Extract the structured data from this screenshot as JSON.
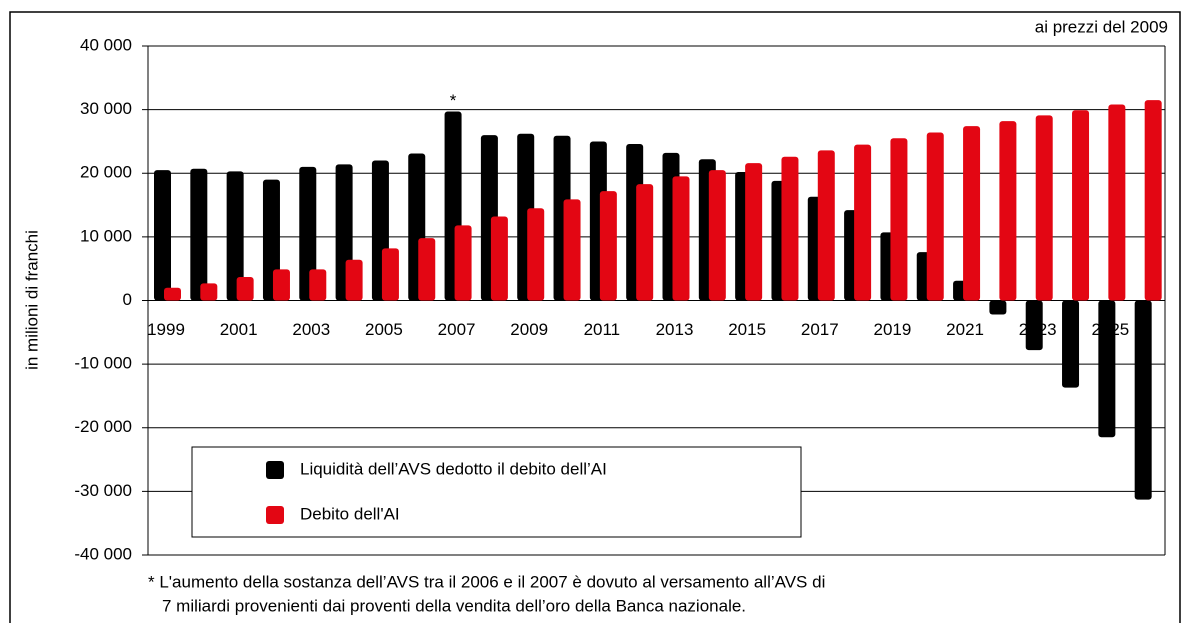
{
  "chart_data": {
    "type": "bar",
    "subtitle": "ai prezzi del 2009",
    "y_label": "in milioni di franchi",
    "categories": [
      "1999",
      null,
      "2001",
      null,
      "2003",
      null,
      "2005",
      null,
      "2007",
      null,
      "2009",
      null,
      "2011",
      null,
      "2013",
      null,
      "2015",
      null,
      "2017",
      null,
      "2019",
      null,
      "2021",
      null,
      "2023",
      null,
      "2025",
      null
    ],
    "series": [
      {
        "name": "Liquidità dell’AVS dedotto il debito dell’AI",
        "color": "#000000",
        "values": [
          20500,
          20700,
          20300,
          19000,
          21000,
          21400,
          22000,
          23100,
          29700,
          26000,
          26200,
          25900,
          25000,
          24600,
          23200,
          22200,
          20200,
          18800,
          16300,
          14200,
          10700,
          7600,
          3100,
          -2200,
          -7800,
          -13700,
          -21500,
          -31300
        ]
      },
      {
        "name": "Debito dell'AI",
        "color": "#e30613",
        "values": [
          2000,
          2700,
          3700,
          4900,
          4900,
          6400,
          8200,
          9800,
          11800,
          13200,
          14500,
          15900,
          17200,
          18300,
          19500,
          20500,
          21600,
          22600,
          23600,
          24500,
          25500,
          26400,
          27400,
          28200,
          29100,
          29900,
          30800,
          31500
        ]
      }
    ],
    "ylim": [
      -40000,
      40000
    ],
    "yticks": [
      {
        "value": -40000,
        "label": "-40 000"
      },
      {
        "value": -30000,
        "label": "-30 000"
      },
      {
        "value": -20000,
        "label": "-20 000"
      },
      {
        "value": -10000,
        "label": "-10 000"
      },
      0,
      {
        "value": 10000,
        "label": "10 000"
      },
      {
        "value": 20000,
        "label": "20 000"
      },
      {
        "value": 30000,
        "label": "30 000"
      },
      {
        "value": 40000,
        "label": "40 000"
      }
    ],
    "grid": true,
    "annotations": [
      {
        "text": "*",
        "x": "2007"
      }
    ],
    "footnote": [
      "* L'aumento della sostanza dell’AVS tra il 2006 e il 2007 è dovuto al versamento all’AVS di",
      "7 miliardi provenienti dai proventi della vendita dell’oro della Banca nazionale."
    ]
  }
}
